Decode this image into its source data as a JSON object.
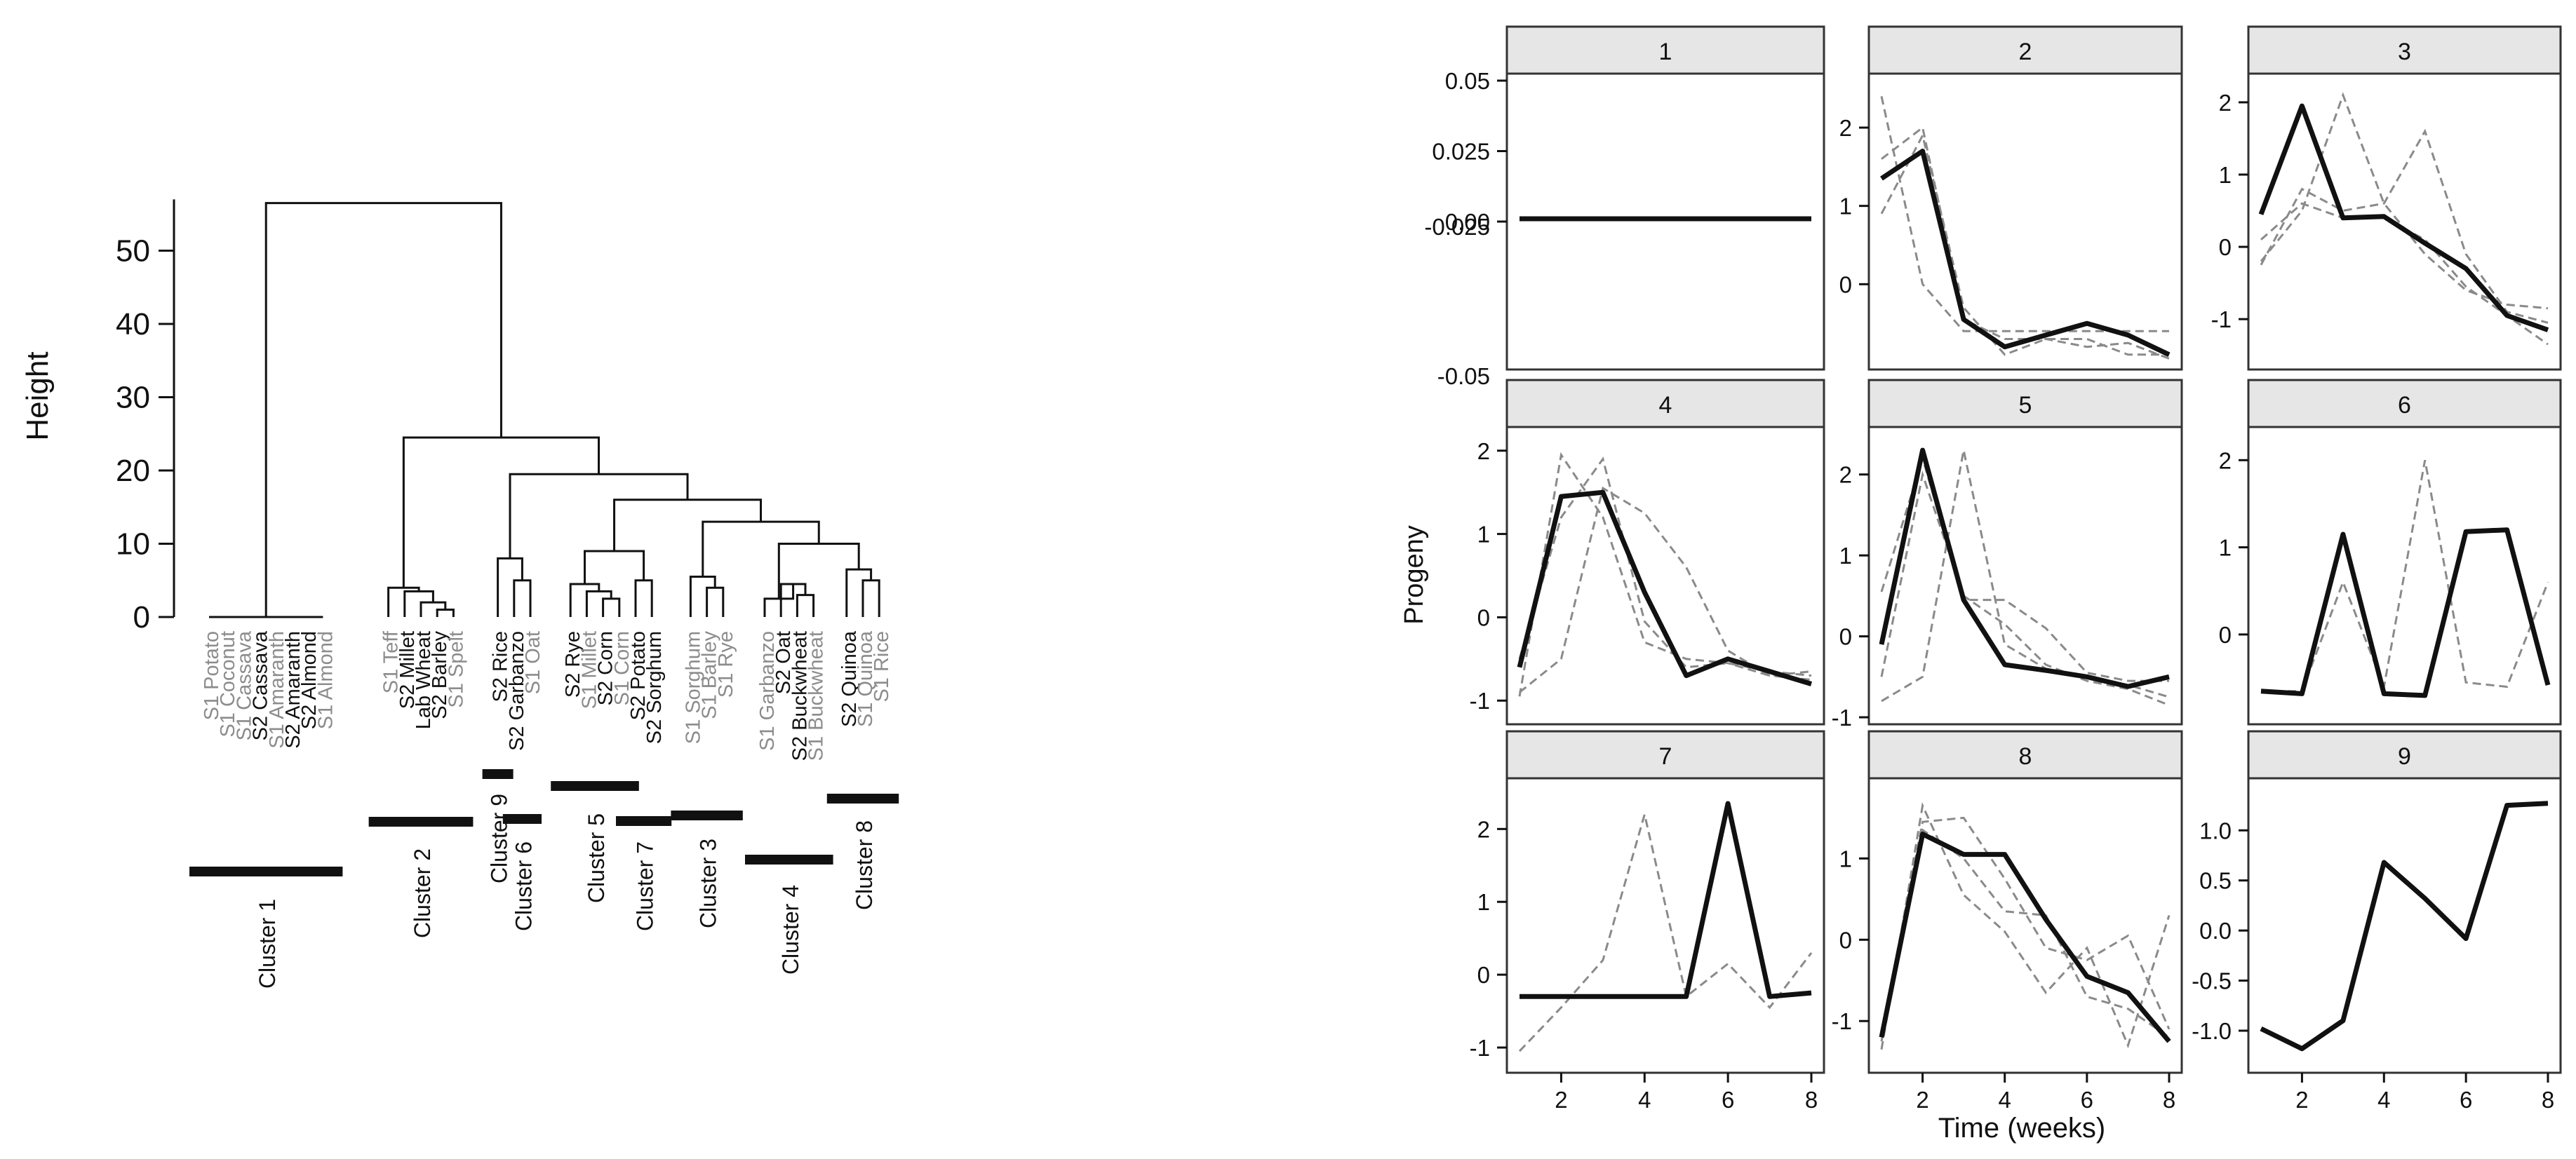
{
  "colors": {
    "ink": "#111111",
    "grey_label": "#8c8c8c",
    "grey_dash": "#8a8a8a",
    "strip_fill": "#e6e6e6",
    "strip_stroke": "#333333"
  },
  "chart_data": [
    {
      "type": "dendrogram",
      "ylabel": "Height",
      "ylim": [
        0,
        57
      ],
      "yticks": [
        0,
        10,
        20,
        30,
        40,
        50
      ],
      "leaves": [
        {
          "label": "S1 Potato",
          "grey": true
        },
        {
          "label": "S1 Coconut",
          "grey": true
        },
        {
          "label": "S1 Cassava",
          "grey": true
        },
        {
          "label": "S2 Cassava",
          "grey": false
        },
        {
          "label": "S1 Amaranth",
          "grey": true
        },
        {
          "label": "S2 Amaranth",
          "grey": false
        },
        {
          "label": "S2 Almond",
          "grey": false
        },
        {
          "label": "S1 Almond",
          "grey": true
        },
        {
          "label": "S1 Teff",
          "grey": true
        },
        {
          "label": "S2 Millet",
          "grey": false
        },
        {
          "label": "Lab Wheat",
          "grey": false
        },
        {
          "label": "S2 Barley",
          "grey": false
        },
        {
          "label": "S1 Spelt",
          "grey": true
        },
        {
          "label": "S2 Rice",
          "grey": false
        },
        {
          "label": "S2 Garbanzo",
          "grey": false
        },
        {
          "label": "S1 Oat",
          "grey": true
        },
        {
          "label": "S2 Rye",
          "grey": false
        },
        {
          "label": "S1 Millet",
          "grey": true
        },
        {
          "label": "S2 Corn",
          "grey": false
        },
        {
          "label": "S1 Corn",
          "grey": true
        },
        {
          "label": "S2 Potato",
          "grey": false
        },
        {
          "label": "S2 Sorghum",
          "grey": false
        },
        {
          "label": "S1 Sorghum",
          "grey": true
        },
        {
          "label": "S1 Barley",
          "grey": true
        },
        {
          "label": "S1 Rye",
          "grey": true
        },
        {
          "label": "S1 Garbanzo",
          "grey": true
        },
        {
          "label": "S2 Oat",
          "grey": false
        },
        {
          "label": "S2 Buckwheat",
          "grey": false
        },
        {
          "label": "S1 Buckwheat",
          "grey": true
        },
        {
          "label": "S2 Quinoa",
          "grey": false
        },
        {
          "label": "S1 Quinoa",
          "grey": true
        },
        {
          "label": "S1 Rice",
          "grey": true
        }
      ],
      "merges": [
        {
          "id": "c1",
          "left": "L0",
          "right": "L7",
          "height": 0
        },
        {
          "id": "c2a",
          "left": "L11",
          "right": "L12",
          "height": 1
        },
        {
          "id": "c2b",
          "left": "L10",
          "right": "c2a",
          "height": 2
        },
        {
          "id": "c2c",
          "left": "L9",
          "right": "c2b",
          "height": 3.5
        },
        {
          "id": "c2",
          "left": "L8",
          "right": "c2c",
          "height": 4
        },
        {
          "id": "c6",
          "left": "L14",
          "right": "L15",
          "height": 5
        },
        {
          "id": "c96",
          "left": "L13",
          "right": "c6",
          "height": 8
        },
        {
          "id": "c5a",
          "left": "L18",
          "right": "L19",
          "height": 2.5
        },
        {
          "id": "c5b",
          "left": "L17",
          "right": "c5a",
          "height": 3.5
        },
        {
          "id": "c5",
          "left": "L16",
          "right": "c5b",
          "height": 4.5
        },
        {
          "id": "c7",
          "left": "L20",
          "right": "L21",
          "height": 5
        },
        {
          "id": "c57",
          "left": "c5",
          "right": "c7",
          "height": 9
        },
        {
          "id": "c3a",
          "left": "L23",
          "right": "L24",
          "height": 4
        },
        {
          "id": "c3",
          "left": "L22",
          "right": "c3a",
          "height": 5.5
        },
        {
          "id": "c4a",
          "left": "L27",
          "right": "L28",
          "height": 3
        },
        {
          "id": "c4b",
          "left": "L26",
          "right": "c4a",
          "height": 4.5
        },
        {
          "id": "c4",
          "left": "L25",
          "right": "c4b",
          "height": 2.5
        },
        {
          "id": "c8a",
          "left": "L30",
          "right": "L31",
          "height": 5
        },
        {
          "id": "c8",
          "left": "L29",
          "right": "c8a",
          "height": 6.5
        },
        {
          "id": "c48",
          "left": "c4",
          "right": "c8",
          "height": 10
        },
        {
          "id": "c348",
          "left": "c3",
          "right": "c48",
          "height": 13
        },
        {
          "id": "c57348",
          "left": "c57",
          "right": "c348",
          "height": 16
        },
        {
          "id": "cmid",
          "left": "c96",
          "right": "c57348",
          "height": 19.5
        },
        {
          "id": "cright",
          "left": "c2",
          "right": "cmid",
          "height": 24.5
        },
        {
          "id": "root",
          "left": "c1",
          "right": "cright",
          "height": 56.5
        }
      ],
      "clusters": [
        {
          "label": "Cluster 1",
          "from": 0,
          "to": 7
        },
        {
          "label": "Cluster 2",
          "from": 8,
          "to": 12
        },
        {
          "label": "Cluster 9",
          "from": 13,
          "to": 13
        },
        {
          "label": "Cluster 6",
          "from": 14,
          "to": 15
        },
        {
          "label": "Cluster 5",
          "from": 16,
          "to": 19
        },
        {
          "label": "Cluster 7",
          "from": 20,
          "to": 21
        },
        {
          "label": "Cluster 3",
          "from": 22,
          "to": 24
        },
        {
          "label": "Cluster 4",
          "from": 25,
          "to": 28
        },
        {
          "label": "Cluster 8",
          "from": 29,
          "to": 31
        }
      ]
    },
    {
      "type": "line",
      "xlabel": "Time (weeks)",
      "ylabel": "Progeny",
      "x": [
        1,
        2,
        3,
        4,
        5,
        6,
        7,
        8
      ],
      "xticks": [
        2,
        4,
        6,
        8
      ],
      "panels": [
        {
          "title": "1",
          "ylim": [
            -0.05,
            0.05
          ],
          "yticks": [
            0.05,
            0.025,
            0.0
          ],
          "ytick_labels": [
            "0.05",
            "0.025",
            "0.00"
          ],
          "yticks_outside": [
            -0.025,
            -0.05
          ],
          "ytick_labels_outside": [
            "-0.025",
            "-0.05"
          ],
          "mean": [
            0.001,
            0.001,
            0.001,
            0.001,
            0.001,
            0.001,
            0.001,
            0.001
          ],
          "members": []
        },
        {
          "title": "2",
          "ylim": [
            -1.0,
            2.6
          ],
          "yticks": [
            2,
            1,
            0
          ],
          "ytick_labels": [
            "2",
            "1",
            "0"
          ],
          "mean": [
            1.35,
            1.7,
            -0.45,
            -0.8,
            -0.65,
            -0.5,
            -0.65,
            -0.9
          ],
          "members": [
            [
              2.4,
              0.0,
              -0.6,
              -0.6,
              -0.6,
              -0.6,
              -0.6,
              -0.6
            ],
            [
              0.9,
              1.9,
              -0.3,
              -0.9,
              -0.7,
              -0.7,
              -0.9,
              -0.9
            ],
            [
              1.6,
              2.0,
              -0.45,
              -0.7,
              -0.7,
              -0.8,
              -0.75,
              -0.95
            ]
          ]
        },
        {
          "title": "3",
          "ylim": [
            -1.6,
            2.3
          ],
          "yticks": [
            2,
            1,
            0,
            -1
          ],
          "ytick_labels": [
            "2",
            "1",
            "0",
            "-1"
          ],
          "mean": [
            0.45,
            1.95,
            0.4,
            0.42,
            0.05,
            -0.3,
            -0.95,
            -1.15
          ],
          "members": [
            [
              -0.2,
              0.5,
              2.1,
              0.6,
              -0.1,
              -0.6,
              -0.8,
              -0.85
            ],
            [
              -0.25,
              0.8,
              0.5,
              0.6,
              1.6,
              -0.1,
              -0.9,
              -1.05
            ],
            [
              0.1,
              0.6,
              0.4,
              0.4,
              0.1,
              -0.55,
              -0.95,
              -1.35
            ]
          ]
        },
        {
          "title": "4",
          "ylim": [
            -1.2,
            2.2
          ],
          "yticks": [
            2,
            1,
            0,
            -1
          ],
          "ytick_labels": [
            "2",
            "1",
            "0",
            "-1"
          ],
          "mean": [
            -0.6,
            1.45,
            1.5,
            0.3,
            -0.7,
            -0.5,
            -0.65,
            -0.8
          ],
          "members": [
            [
              -0.95,
              1.95,
              1.2,
              -0.3,
              -0.5,
              -0.55,
              -0.7,
              -0.65
            ],
            [
              -0.5,
              1.2,
              1.9,
              -0.05,
              -0.6,
              -0.55,
              -0.65,
              -0.7
            ],
            [
              -0.9,
              -0.5,
              1.55,
              1.25,
              0.6,
              -0.4,
              -0.7,
              -0.75
            ]
          ]
        },
        {
          "title": "5",
          "ylim": [
            -1.0,
            2.5
          ],
          "yticks": [
            2,
            1,
            0,
            -1
          ],
          "ytick_labels": [
            "2",
            "1",
            "0",
            "-1"
          ],
          "mean": [
            -0.1,
            2.3,
            0.45,
            -0.35,
            -0.42,
            -0.5,
            -0.62,
            -0.5
          ],
          "members": [
            [
              -0.8,
              -0.5,
              2.3,
              -0.1,
              -0.4,
              -0.5,
              -0.6,
              -0.75
            ],
            [
              -0.5,
              2.0,
              0.5,
              0.15,
              -0.35,
              -0.55,
              -0.65,
              -0.85
            ],
            [
              0.55,
              2.2,
              0.45,
              0.45,
              0.1,
              -0.45,
              -0.55,
              -0.55
            ]
          ]
        },
        {
          "title": "6",
          "ylim": [
            -0.95,
            2.3
          ],
          "yticks": [
            2,
            1,
            0
          ],
          "ytick_labels": [
            "2",
            "1",
            "0"
          ],
          "mean": [
            -0.65,
            -0.68,
            1.15,
            -0.68,
            -0.7,
            1.18,
            1.2,
            -0.58
          ],
          "members": [
            [
              -0.65,
              -0.65,
              0.6,
              -0.6,
              2.0,
              -0.55,
              -0.6,
              0.6
            ]
          ]
        },
        {
          "title": "7",
          "ylim": [
            -1.25,
            2.6
          ],
          "yticks": [
            2,
            1,
            0,
            -1
          ],
          "ytick_labels": [
            "2",
            "1",
            "0",
            "-1"
          ],
          "mean": [
            -0.3,
            -0.3,
            -0.3,
            -0.3,
            -0.3,
            2.35,
            -0.3,
            -0.25
          ],
          "members": [
            [
              -1.05,
              -0.45,
              0.2,
              2.2,
              -0.3,
              0.15,
              -0.45,
              0.3
            ]
          ]
        },
        {
          "title": "8",
          "ylim": [
            -1.55,
            1.9
          ],
          "yticks": [
            1,
            0,
            -1
          ],
          "ytick_labels": [
            "1",
            "0",
            "-1"
          ],
          "mean": [
            -1.2,
            1.3,
            1.05,
            1.05,
            0.25,
            -0.45,
            -0.65,
            -1.25
          ],
          "members": [
            [
              -1.35,
              1.65,
              0.55,
              0.1,
              -0.65,
              -0.1,
              -1.3,
              0.3
            ],
            [
              -1.15,
              1.45,
              1.5,
              0.75,
              -0.1,
              -0.25,
              0.05,
              -1.1
            ],
            [
              -1.25,
              1.35,
              1.0,
              0.35,
              0.3,
              -0.7,
              -0.85,
              -1.2
            ]
          ]
        },
        {
          "title": "9",
          "ylim": [
            -1.35,
            1.45
          ],
          "yticks": [
            1.0,
            0.5,
            0.0,
            -0.5,
            -1.0
          ],
          "ytick_labels": [
            "1.0",
            "0.5",
            "0.0",
            "-0.5",
            "-1.0"
          ],
          "mean": [
            -0.98,
            -1.18,
            -0.9,
            0.68,
            0.32,
            -0.08,
            1.25,
            1.27
          ],
          "members": []
        }
      ]
    }
  ]
}
